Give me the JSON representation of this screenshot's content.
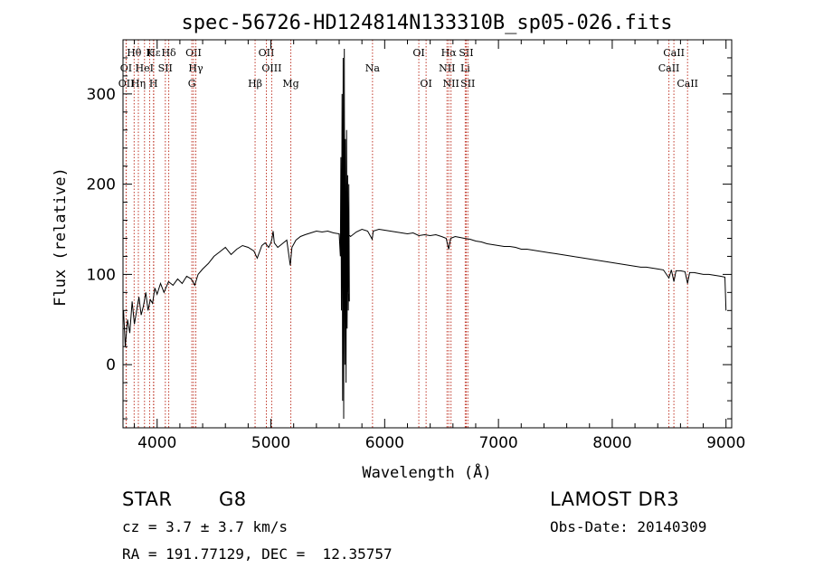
{
  "chart_data": {
    "type": "line",
    "title": "spec-56726-HD124814N133310B_sp05-026.fits",
    "xlabel": "Wavelength (Å)",
    "ylabel": "Flux (relative)",
    "xlim": [
      3700,
      9050
    ],
    "ylim": [
      -70,
      360
    ],
    "xticks": [
      4000,
      5000,
      6000,
      7000,
      8000,
      9000
    ],
    "yticks": [
      0,
      100,
      200,
      300
    ],
    "line_color": "#000000",
    "marker_color": "#c0392b",
    "series": [
      {
        "name": "spectrum",
        "points": [
          [
            3705,
            60
          ],
          [
            3720,
            20
          ],
          [
            3740,
            50
          ],
          [
            3760,
            35
          ],
          [
            3780,
            70
          ],
          [
            3800,
            45
          ],
          [
            3820,
            60
          ],
          [
            3840,
            75
          ],
          [
            3860,
            55
          ],
          [
            3880,
            65
          ],
          [
            3900,
            80
          ],
          [
            3920,
            60
          ],
          [
            3940,
            72
          ],
          [
            3960,
            68
          ],
          [
            3980,
            85
          ],
          [
            4000,
            78
          ],
          [
            4030,
            90
          ],
          [
            4060,
            80
          ],
          [
            4100,
            92
          ],
          [
            4140,
            88
          ],
          [
            4180,
            95
          ],
          [
            4220,
            90
          ],
          [
            4260,
            98
          ],
          [
            4300,
            95
          ],
          [
            4330,
            88
          ],
          [
            4360,
            100
          ],
          [
            4400,
            106
          ],
          [
            4450,
            112
          ],
          [
            4500,
            120
          ],
          [
            4550,
            125
          ],
          [
            4600,
            130
          ],
          [
            4650,
            122
          ],
          [
            4700,
            128
          ],
          [
            4750,
            132
          ],
          [
            4800,
            130
          ],
          [
            4850,
            126
          ],
          [
            4880,
            118
          ],
          [
            4920,
            132
          ],
          [
            4950,
            135
          ],
          [
            4980,
            130
          ],
          [
            5000,
            135
          ],
          [
            5010,
            140
          ],
          [
            5020,
            148
          ],
          [
            5030,
            135
          ],
          [
            5060,
            130
          ],
          [
            5100,
            134
          ],
          [
            5140,
            138
          ],
          [
            5170,
            110
          ],
          [
            5185,
            130
          ],
          [
            5220,
            138
          ],
          [
            5260,
            142
          ],
          [
            5300,
            144
          ],
          [
            5350,
            146
          ],
          [
            5400,
            148
          ],
          [
            5450,
            147
          ],
          [
            5500,
            148
          ],
          [
            5550,
            146
          ],
          [
            5600,
            145
          ],
          [
            5620,
            140
          ],
          [
            5640,
            150
          ],
          [
            5700,
            142
          ],
          [
            5750,
            147
          ],
          [
            5800,
            150
          ],
          [
            5850,
            148
          ],
          [
            5890,
            139
          ],
          [
            5900,
            148
          ],
          [
            5950,
            150
          ],
          [
            6000,
            149
          ],
          [
            6050,
            148
          ],
          [
            6100,
            147
          ],
          [
            6150,
            146
          ],
          [
            6200,
            145
          ],
          [
            6250,
            146
          ],
          [
            6300,
            143
          ],
          [
            6350,
            144
          ],
          [
            6400,
            143
          ],
          [
            6450,
            144
          ],
          [
            6500,
            142
          ],
          [
            6540,
            140
          ],
          [
            6563,
            128
          ],
          [
            6580,
            140
          ],
          [
            6620,
            142
          ],
          [
            6660,
            141
          ],
          [
            6700,
            140
          ],
          [
            6750,
            139
          ],
          [
            6800,
            137
          ],
          [
            6850,
            136
          ],
          [
            6900,
            134
          ],
          [
            6950,
            133
          ],
          [
            7000,
            132
          ],
          [
            7050,
            131
          ],
          [
            7100,
            131
          ],
          [
            7150,
            130
          ],
          [
            7200,
            128
          ],
          [
            7250,
            128
          ],
          [
            7300,
            127
          ],
          [
            7350,
            126
          ],
          [
            7400,
            125
          ],
          [
            7450,
            124
          ],
          [
            7500,
            123
          ],
          [
            7550,
            122
          ],
          [
            7600,
            121
          ],
          [
            7650,
            120
          ],
          [
            7700,
            119
          ],
          [
            7750,
            118
          ],
          [
            7800,
            117
          ],
          [
            7850,
            116
          ],
          [
            7900,
            115
          ],
          [
            7950,
            114
          ],
          [
            8000,
            113
          ],
          [
            8050,
            112
          ],
          [
            8100,
            111
          ],
          [
            8150,
            110
          ],
          [
            8200,
            109
          ],
          [
            8250,
            108
          ],
          [
            8300,
            108
          ],
          [
            8350,
            107
          ],
          [
            8400,
            106
          ],
          [
            8450,
            105
          ],
          [
            8498,
            96
          ],
          [
            8520,
            105
          ],
          [
            8542,
            92
          ],
          [
            8560,
            104
          ],
          [
            8600,
            104
          ],
          [
            8640,
            103
          ],
          [
            8662,
            90
          ],
          [
            8680,
            102
          ],
          [
            8720,
            102
          ],
          [
            8760,
            101
          ],
          [
            8800,
            100
          ],
          [
            8850,
            100
          ],
          [
            8900,
            99
          ],
          [
            8950,
            98
          ],
          [
            8990,
            97
          ],
          [
            9000,
            60
          ]
        ],
        "glitch": [
          [
            5610,
            120
          ],
          [
            5615,
            230
          ],
          [
            5620,
            60
          ],
          [
            5625,
            300
          ],
          [
            5630,
            -40
          ],
          [
            5635,
            340
          ],
          [
            5640,
            -60
          ],
          [
            5645,
            350
          ],
          [
            5650,
            0
          ],
          [
            5655,
            250
          ],
          [
            5660,
            -20
          ],
          [
            5665,
            260
          ],
          [
            5670,
            40
          ],
          [
            5675,
            210
          ],
          [
            5680,
            60
          ],
          [
            5685,
            200
          ],
          [
            5690,
            70
          ]
        ]
      }
    ],
    "line_markers": [
      {
        "label": "Hθ",
        "x": 3798,
        "row": 0
      },
      {
        "label": "Hε",
        "x": 3970,
        "row": 0
      },
      {
        "label": "K",
        "x": 3934,
        "row": 0
      },
      {
        "label": "Hδ",
        "x": 4102,
        "row": 0
      },
      {
        "label": "OII",
        "x": 4320,
        "row": 0
      },
      {
        "label": "OII",
        "x": 4960,
        "row": 0
      },
      {
        "label": "OI",
        "x": 6300,
        "row": 0
      },
      {
        "label": "Hα",
        "x": 6563,
        "row": 0
      },
      {
        "label": "SII",
        "x": 6717,
        "row": 0
      },
      {
        "label": "CaII",
        "x": 8542,
        "row": 0
      },
      {
        "label": "OI",
        "x": 3727,
        "row": 1
      },
      {
        "label": "HeI",
        "x": 3889,
        "row": 1
      },
      {
        "label": "SII",
        "x": 4072,
        "row": 1
      },
      {
        "label": "Hγ",
        "x": 4340,
        "row": 1
      },
      {
        "label": "OIII",
        "x": 5007,
        "row": 1
      },
      {
        "label": "Na",
        "x": 5893,
        "row": 1
      },
      {
        "label": "NII",
        "x": 6548,
        "row": 1
      },
      {
        "label": "Li",
        "x": 6708,
        "row": 1
      },
      {
        "label": "CaII",
        "x": 8498,
        "row": 1
      },
      {
        "label": "OII",
        "x": 3729,
        "row": 2
      },
      {
        "label": "Hη",
        "x": 3835,
        "row": 2
      },
      {
        "label": "H",
        "x": 3968,
        "row": 2
      },
      {
        "label": "G",
        "x": 4305,
        "row": 2
      },
      {
        "label": "Hβ",
        "x": 4861,
        "row": 2
      },
      {
        "label": "Mg",
        "x": 5175,
        "row": 2
      },
      {
        "label": "OI",
        "x": 6364,
        "row": 2
      },
      {
        "label": "NII",
        "x": 6583,
        "row": 2
      },
      {
        "label": "SII",
        "x": 6731,
        "row": 2
      },
      {
        "label": "CaII",
        "x": 8662,
        "row": 2
      }
    ]
  },
  "info": {
    "object_class": "STAR",
    "subclass": "G8",
    "survey": "LAMOST DR3",
    "cz": "cz = 3.7 ± 3.7 km/s",
    "obs_date": "Obs-Date: 20140309",
    "radec": "RA = 191.77129, DEC =  12.35757"
  }
}
